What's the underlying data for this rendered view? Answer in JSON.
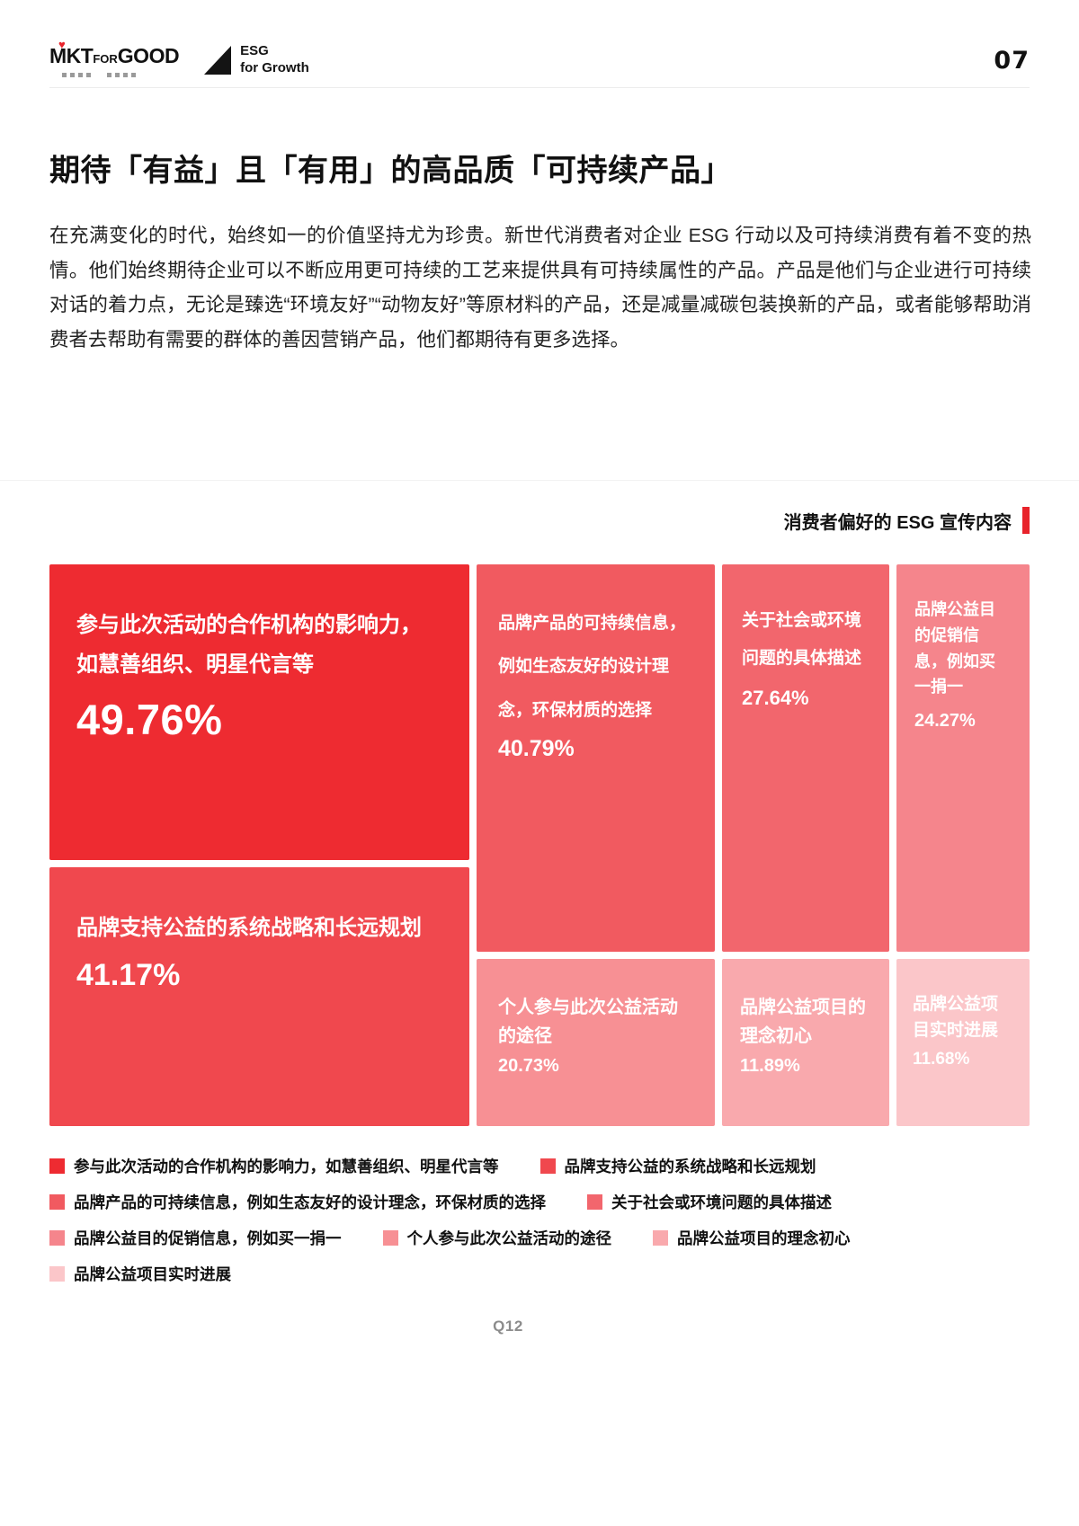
{
  "header": {
    "brand_m": "M",
    "brand_rest": "KT",
    "brand_for": "FOR",
    "brand_good": "GOOD",
    "heart": "♥",
    "esg_line1": "ESG",
    "esg_line2": "for Growth",
    "page_number": "07"
  },
  "title": "期待「有益」且「有用」的高品质「可持续产品」",
  "body": "在充满变化的时代，始终如一的价值坚持尤为珍贵。新世代消费者对企业 ESG 行动以及可持续消费有着不变的热情。他们始终期待企业可以不断应用更可持续的工艺来提供具有可持续属性的产品。产品是他们与企业进行可持续对话的着力点，无论是臻选“环境友好”“动物友好”等原材料的产品，还是减量减碳包装换新的产品，或者能够帮助消费者去帮助有需要的群体的善因营销产品，他们都期待有更多选择。",
  "chart": {
    "caption": "消费者偏好的 ESG 宣传内容",
    "accent_color": "#e8232b",
    "source": "Q12",
    "blocks": [
      {
        "label": "参与此次活动的合作机构的影响力，如慧善组织、明星代言等",
        "value": "49.76%",
        "color": "#ee2b31"
      },
      {
        "label": "品牌支持公益的系统战略和长远规划",
        "value": "41.17%",
        "color": "#f0484e"
      },
      {
        "label": "品牌产品的可持续信息，例如生态友好的设计理念，环保材质的选择",
        "value": "40.79%",
        "color": "#f15a60"
      },
      {
        "label": "关于社会或环境问题的具体描述",
        "value": "27.64%",
        "color": "#f2666d"
      },
      {
        "label": "品牌公益目的促销信息，例如买一捐一",
        "value": "24.27%",
        "color": "#f5858c"
      },
      {
        "label": "个人参与此次公益活动的途径",
        "value": "20.73%",
        "color": "#f79094"
      },
      {
        "label": "品牌公益项目的理念初心",
        "value": "11.89%",
        "color": "#f9a9ad"
      },
      {
        "label": "品牌公益项目实时进展",
        "value": "11.68%",
        "color": "#fbc6c9"
      }
    ]
  },
  "chart_data": {
    "type": "treemap",
    "title": "消费者偏好的 ESG 宣传内容",
    "unit": "%",
    "categories": [
      "参与此次活动的合作机构的影响力，如慧善组织、明星代言等",
      "品牌支持公益的系统战略和长远规划",
      "品牌产品的可持续信息，例如生态友好的设计理念，环保材质的选择",
      "关于社会或环境问题的具体描述",
      "品牌公益目的促销信息，例如买一捐一",
      "个人参与此次公益活动的途径",
      "品牌公益项目的理念初心",
      "品牌公益项目实时进展"
    ],
    "values": [
      49.76,
      41.17,
      40.79,
      27.64,
      24.27,
      20.73,
      11.89,
      11.68
    ],
    "colors": [
      "#ee2b31",
      "#f0484e",
      "#f15a60",
      "#f2666d",
      "#f5858c",
      "#f79094",
      "#f9a9ad",
      "#fbc6c9"
    ],
    "legend_position": "bottom",
    "source_question": "Q12"
  }
}
